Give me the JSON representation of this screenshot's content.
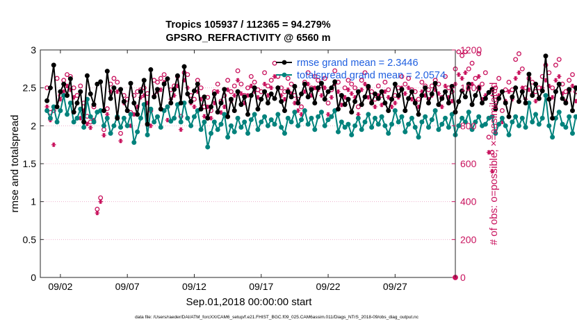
{
  "chart_data": {
    "type": "line",
    "title_line1": "Tropics 105937 / 112365 = 94.279%",
    "title_line2": "GPSRO_REFRACTIVITY @ 6560 m",
    "xlabel": "Sep.01,2018 00:00:00 start",
    "ylabel_left": "rmse and totalspread",
    "ylabel_right": "# of obs: o=possible; ×=assimilated",
    "footer": "data file: /Users/raeder/DAI/ATM_forcXX/CAM6_setup/f.e21.FHIST_BGC.f09_025.CAM6assim.011/Diags_NTrS_2018-09/obs_diag_output.nc",
    "xlim": [
      0.5,
      31.5
    ],
    "ylim_left": [
      0,
      3
    ],
    "ylim_right": [
      0,
      1200
    ],
    "xticks": [
      {
        "value": 2,
        "label": "09/02"
      },
      {
        "value": 7,
        "label": "09/07"
      },
      {
        "value": 12,
        "label": "09/12"
      },
      {
        "value": 17,
        "label": "09/17"
      },
      {
        "value": 22,
        "label": "09/22"
      },
      {
        "value": 27,
        "label": "09/27"
      }
    ],
    "yticks_left": [
      0,
      0.5,
      1,
      1.5,
      2,
      2.5,
      3
    ],
    "yticks_left_labels": [
      "0",
      "0.5",
      "1",
      "1.5",
      "2",
      "2.5",
      "3"
    ],
    "yticks_right": [
      0,
      200,
      400,
      600,
      800,
      1000,
      1200
    ],
    "yticks_right_labels": [
      "0",
      "200",
      "400",
      "600",
      "800",
      "1000",
      "1200"
    ],
    "legend": {
      "position": "top-right",
      "rmse_label": "rmse grand mean = 2.3446",
      "spread_label": "totalspread grand mean = 2.0574"
    },
    "series": [
      {
        "name": "rmse",
        "color": "#000000",
        "values": [
          2.33,
          2.5,
          2.8,
          2.25,
          2.45,
          2.55,
          2.4,
          2.62,
          2.18,
          2.3,
          2.45,
          2.05,
          2.66,
          2.42,
          2.28,
          2.55,
          2.58,
          2.2,
          2.72,
          2.36,
          2.5,
          2.1,
          2.48,
          2.32,
          2.2,
          2.56,
          2.3,
          2.15,
          2.45,
          2.6,
          2.02,
          2.74,
          2.38,
          2.48,
          2.22,
          2.55,
          2.62,
          2.3,
          2.48,
          2.66,
          2.3,
          2.78,
          2.42,
          2.32,
          2.46,
          2.55,
          2.22,
          2.38,
          2.1,
          2.25,
          2.42,
          2.18,
          2.3,
          2.48,
          2.12,
          2.35,
          2.2,
          2.45,
          2.28,
          2.38,
          2.15,
          2.4,
          2.5,
          2.22,
          2.35,
          2.45,
          2.3,
          2.42,
          2.36,
          2.5,
          2.32,
          2.2,
          2.45,
          2.38,
          2.52,
          2.3,
          2.42,
          2.55,
          2.38,
          2.48,
          2.3,
          2.5,
          2.56,
          2.35,
          2.45,
          2.5,
          2.58,
          2.22,
          2.4,
          2.28,
          2.35,
          2.18,
          2.32,
          2.45,
          2.28,
          2.38,
          2.52,
          2.3,
          2.42,
          2.36,
          2.45,
          2.3,
          2.2,
          2.35,
          2.55,
          2.4,
          2.48,
          2.2,
          2.36,
          2.45,
          2.3,
          2.15,
          2.4,
          2.5,
          2.3,
          2.42,
          2.56,
          2.28,
          2.36,
          2.45,
          2.3,
          2.52,
          2.18,
          2.32,
          2.46,
          2.38,
          2.55,
          2.28,
          2.4,
          2.5,
          2.3,
          2.36,
          2.44,
          2.48,
          2.22,
          2.36,
          2.45,
          2.3,
          2.12,
          2.38,
          2.5,
          2.32,
          2.45,
          2.3,
          2.68,
          2.4,
          2.55,
          2.36,
          2.46,
          2.92,
          2.35,
          2.1,
          2.45,
          2.55,
          2.36,
          2.3,
          2.48,
          2.2,
          2.5,
          2.42,
          2.6,
          2.38,
          2.3,
          2.55,
          2.44,
          2.32,
          2.22,
          2.48,
          2.38,
          2.12,
          2.4,
          2.5,
          2.3,
          2.65,
          2.4,
          2.2,
          2.36,
          2.48,
          2.32,
          2.55,
          2.42,
          2.3,
          2.88,
          2.45,
          2.35,
          2.78,
          2.4,
          2.52,
          2.2,
          2.4,
          2.55,
          2.32,
          2.45,
          2.6,
          2.3,
          2.5,
          2.15,
          2.38,
          2.48,
          2.22,
          2.38,
          2.08,
          2.3,
          2.18,
          2.4,
          2.28,
          2.1,
          2.35,
          2.22,
          2.5,
          2.3,
          2.45,
          2.12,
          2.36,
          2.48,
          2.3,
          2.4,
          2.25,
          2.55,
          2.45,
          2.35,
          2.66,
          2.3,
          2.45,
          2.2,
          2.38,
          2.5,
          2.28,
          2.42,
          2.55,
          2.3,
          2.5,
          2.22,
          2.4,
          2.36,
          2.2,
          2.5,
          2.1,
          2.3,
          2.45,
          2.2,
          2.38,
          2.48,
          2.32,
          2.68,
          2.36,
          2.55,
          2.2,
          2.4,
          2.62,
          2.3,
          2.55,
          2.12,
          2.35,
          2.28,
          2.5,
          2.2,
          2.3,
          2.42,
          2.2,
          2.36,
          2.45,
          2.3
        ]
      },
      {
        "name": "totalspread",
        "color": "#00827c",
        "values": [
          2.2,
          2.1,
          2.25,
          2.05,
          2.2,
          2.4,
          2.15,
          2.3,
          2.05,
          2.1,
          2.22,
          1.98,
          2.35,
          2.12,
          2.05,
          2.18,
          2.2,
          2.0,
          2.1,
          1.9,
          2.0,
          2.12,
          1.98,
          2.1,
          2.0,
          2.15,
          1.78,
          1.92,
          2.1,
          2.28,
          1.88,
          2.22,
          2.05,
          2.12,
          1.98,
          2.2,
          2.25,
          2.06,
          2.1,
          2.28,
          2.05,
          2.3,
          2.1,
          2.0,
          2.12,
          2.2,
          1.95,
          2.05,
          1.72,
          1.9,
          2.05,
          1.95,
          2.02,
          2.15,
          1.85,
          2.0,
          1.92,
          2.1,
          1.98,
          2.05,
          1.9,
          2.08,
          2.15,
          1.95,
          2.05,
          2.12,
          2.0,
          2.08,
          2.02,
          2.15,
          1.98,
          1.9,
          2.1,
          2.05,
          2.18,
          2.0,
          2.08,
          2.2,
          2.02,
          2.1,
          1.95,
          2.12,
          2.18,
          2.0,
          2.08,
          2.12,
          2.2,
          1.92,
          2.05,
          1.98,
          2.02,
          1.88,
          2.0,
          2.1,
          1.95,
          2.05,
          2.15,
          1.98,
          2.1,
          2.02,
          2.12,
          2.0,
          1.9,
          2.02,
          2.2,
          2.05,
          2.12,
          1.92,
          2.02,
          2.1,
          1.98,
          1.85,
          2.05,
          2.12,
          1.98,
          2.08,
          2.2,
          1.95,
          2.02,
          2.1,
          1.98,
          2.15,
          1.88,
          2.0,
          2.1,
          2.05,
          2.18,
          1.95,
          2.05,
          2.12,
          2.0,
          2.02,
          2.1,
          2.12,
          1.9,
          2.02,
          2.1,
          2.0,
          1.88,
          2.05,
          2.12,
          2.0,
          2.1,
          1.98,
          2.3,
          2.05,
          2.15,
          2.02,
          2.1,
          2.4,
          2.0,
          1.85,
          2.1,
          2.18,
          2.02,
          1.98,
          2.12,
          1.9,
          2.12,
          2.08,
          2.2,
          2.02,
          1.98,
          2.15,
          2.1,
          2.0,
          1.9,
          2.12,
          2.05,
          1.85,
          2.08,
          2.15,
          1.98,
          2.25,
          2.05,
          1.92,
          2.02,
          2.12,
          1.98,
          2.18,
          2.08,
          1.98,
          2.4,
          2.1,
          2.02,
          2.35,
          2.08,
          2.15,
          1.92,
          2.05,
          2.18,
          2.0,
          2.1,
          2.2,
          1.98,
          2.12,
          1.88,
          2.05,
          2.12,
          1.92,
          2.05,
          1.82,
          2.0,
          1.9,
          2.05,
          1.95,
          1.85,
          2.02,
          1.92,
          2.12,
          2.0,
          2.1,
          1.85,
          2.02,
          2.12,
          2.0,
          2.08,
          1.95,
          2.18,
          2.1,
          2.02,
          2.25,
          2.0,
          2.1,
          1.92,
          2.05,
          2.12,
          1.98,
          2.08,
          2.18,
          2.0,
          2.12,
          1.92,
          2.05,
          2.02,
          1.92,
          2.12,
          1.85,
          2.0,
          2.1,
          1.92,
          2.05,
          2.12,
          2.0,
          2.28,
          2.02,
          2.18,
          1.92,
          2.05,
          2.22,
          2.0,
          2.15,
          1.88,
          2.02,
          1.98,
          2.12,
          1.92,
          2.0,
          2.08,
          1.92,
          2.02,
          2.1,
          2.2
        ]
      }
    ],
    "obs_possible": {
      "marker": "o",
      "color": "#c8105c",
      "values": [
        1000,
        870,
        880,
        1050,
        960,
        1040,
        1070,
        1060,
        1000,
        960,
        1010,
        920,
        850,
        820,
        900,
        360,
        420,
        780,
        890,
        1020,
        1050,
        1030,
        760,
        960,
        940,
        870,
        960,
        980,
        990,
        1000,
        970,
        880,
        1040,
        1030,
        1050,
        1070,
        900,
        990,
        1010,
        1060,
        850,
        1080,
        1070,
        960,
        940,
        1040,
        1000,
        900,
        950,
        880,
        980,
        1020,
        930,
        960,
        1040,
        980,
        1010,
        1090,
        1020,
        960,
        1000,
        1060,
        1030,
        990,
        980,
        1080,
        1010,
        1040,
        1130,
        1060,
        1000,
        980,
        1050,
        1020,
        960,
        940,
        900,
        1030,
        1080,
        1000,
        1060,
        1040,
        1010,
        1050,
        920,
        990,
        1090,
        1030,
        960,
        1000,
        1040,
        1020,
        1000,
        900,
        1040,
        1080,
        1000,
        980,
        940,
        1010,
        960,
        1030,
        990,
        940,
        960,
        1000,
        1060,
        1020,
        1050,
        990,
        980,
        940,
        1030,
        1010,
        990,
        1010,
        1040,
        1020,
        950,
        1060,
        1000,
        980,
        1100,
        1190,
        1170,
        1190,
        1100,
        1130,
        1050,
        1180,
        1020,
        1080,
        740,
        660,
        1000,
        1050,
        880,
        990,
        1030,
        990,
        1150,
        1180,
        1100,
        1000,
        1050,
        1030,
        980,
        1000,
        1060,
        1120,
        1080,
        1000,
        1120,
        1150,
        1020,
        980,
        1040,
        1070,
        980,
        960,
        1010,
        1000,
        1040,
        1110,
        1000,
        1080,
        1070,
        1050,
        1060,
        1000,
        1070,
        1030,
        990,
        1040,
        1110,
        1130,
        950,
        1000,
        1080,
        1060,
        1120,
        1140,
        1100,
        1040,
        1000,
        1060,
        1110,
        1070,
        1030,
        1120,
        1180,
        1140,
        1130,
        1060,
        1090,
        1120,
        840,
        780,
        1000,
        1050,
        1080,
        1110,
        1040,
        1020,
        1090,
        1140,
        1060,
        1030,
        1000,
        1120,
        1040,
        1090,
        1060,
        1000,
        1050,
        940,
        1030,
        1080,
        1050,
        1000,
        1110,
        1080,
        1050,
        1040,
        1000
      ]
    },
    "obs_assimilated": {
      "marker": "×",
      "color": "#c8105c",
      "values": [
        900,
        830,
        700,
        900,
        940,
        980,
        1010,
        990,
        950,
        920,
        840,
        880,
        810,
        790,
        830,
        340,
        400,
        750,
        860,
        980,
        1000,
        980,
        720,
        920,
        880,
        800,
        860,
        900,
        950,
        960,
        920,
        800,
        960,
        980,
        990,
        1030,
        830,
        940,
        960,
        1010,
        780,
        1040,
        1000,
        920,
        900,
        980,
        940,
        850,
        900,
        840,
        920,
        980,
        870,
        900,
        990,
        930,
        960,
        1040,
        970,
        920,
        960,
        1010,
        980,
        950,
        940,
        1020,
        960,
        1000,
        1060,
        1000,
        960,
        940,
        990,
        970,
        920,
        880,
        860,
        980,
        1020,
        960,
        1000,
        990,
        960,
        1000,
        860,
        950,
        1020,
        980,
        910,
        950,
        990,
        970,
        950,
        860,
        990,
        1020,
        950,
        930,
        900,
        960,
        910,
        980,
        950,
        900,
        920,
        950,
        1000,
        970,
        1000,
        940,
        930,
        900,
        980,
        960,
        940,
        960,
        990,
        970,
        900,
        1010,
        950,
        930,
        1020,
        1070,
        1050,
        1080,
        1000,
        1020,
        960,
        1060,
        940,
        960,
        660,
        560,
        900,
        960,
        820,
        930,
        980,
        940,
        1050,
        1080,
        1000,
        940,
        990,
        970,
        930,
        950,
        1000,
        1040,
        1010,
        950,
        1040,
        1060,
        970,
        930,
        980,
        1010,
        930,
        910,
        960,
        950,
        990,
        1040,
        950,
        1020,
        1010,
        990,
        1000,
        950,
        1010,
        980,
        940,
        990,
        1040,
        1060,
        900,
        950,
        1010,
        990,
        1040,
        1060,
        1030,
        980,
        950,
        1000,
        1040,
        1000,
        970,
        1030,
        1080,
        1050,
        1040,
        990,
        1010,
        1040,
        780,
        740,
        920,
        960,
        1000,
        1030,
        980,
        960,
        1010,
        1050,
        990,
        960,
        940,
        1040,
        980,
        1020,
        990,
        940,
        980,
        890,
        970,
        1010,
        980,
        950,
        1030,
        1010,
        990,
        980,
        960
      ]
    }
  }
}
